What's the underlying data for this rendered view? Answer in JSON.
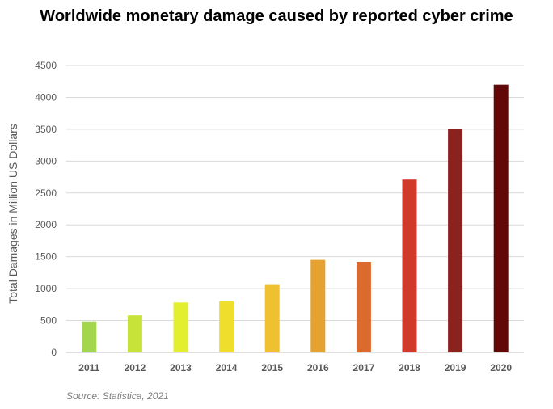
{
  "chart_data": {
    "type": "bar",
    "title": "Worldwide monetary damage caused by reported cyber crime",
    "xlabel": "",
    "ylabel": "Total Damages in Million US Dollars",
    "categories": [
      "2011",
      "2012",
      "2013",
      "2014",
      "2015",
      "2016",
      "2017",
      "2018",
      "2019",
      "2020"
    ],
    "values": [
      485,
      581,
      782,
      800,
      1070,
      1450,
      1420,
      2710,
      3500,
      4200
    ],
    "ylim": [
      0,
      4500
    ],
    "yticks": [
      0,
      500,
      1000,
      1500,
      2000,
      2500,
      3000,
      3500,
      4000,
      4500
    ],
    "grid": "horizontal",
    "legend": "none",
    "bar_colors": [
      "#a4d64d",
      "#c7e33a",
      "#e1ef2e",
      "#f0de2d",
      "#efc02f",
      "#e5a231",
      "#dc6a2d",
      "#cf3a2a",
      "#8b2220",
      "#620808"
    ],
    "source": "Source: Statistica, 2021"
  }
}
